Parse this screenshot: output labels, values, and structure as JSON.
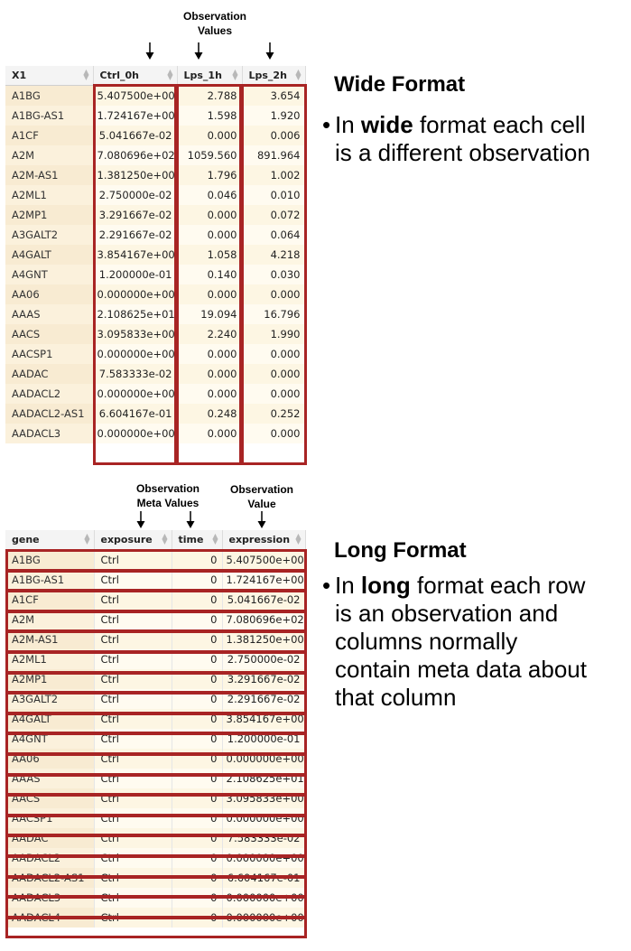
{
  "wide": {
    "annotation": [
      "Observation",
      "Values"
    ],
    "columns": [
      "X1",
      "Ctrl_0h",
      "Lps_1h",
      "Lps_2h"
    ],
    "rows": [
      [
        "A1BG",
        "5.407500e+00",
        "2.788",
        "3.654"
      ],
      [
        "A1BG-AS1",
        "1.724167e+00",
        "1.598",
        "1.920"
      ],
      [
        "A1CF",
        "5.041667e-02",
        "0.000",
        "0.006"
      ],
      [
        "A2M",
        "7.080696e+02",
        "1059.560",
        "891.964"
      ],
      [
        "A2M-AS1",
        "1.381250e+00",
        "1.796",
        "1.002"
      ],
      [
        "A2ML1",
        "2.750000e-02",
        "0.046",
        "0.010"
      ],
      [
        "A2MP1",
        "3.291667e-02",
        "0.000",
        "0.072"
      ],
      [
        "A3GALT2",
        "2.291667e-02",
        "0.000",
        "0.064"
      ],
      [
        "A4GALT",
        "3.854167e+00",
        "1.058",
        "4.218"
      ],
      [
        "A4GNT",
        "1.200000e-01",
        "0.140",
        "0.030"
      ],
      [
        "AA06",
        "0.000000e+00",
        "0.000",
        "0.000"
      ],
      [
        "AAAS",
        "2.108625e+01",
        "19.094",
        "16.796"
      ],
      [
        "AACS",
        "3.095833e+00",
        "2.240",
        "1.990"
      ],
      [
        "AACSP1",
        "0.000000e+00",
        "0.000",
        "0.000"
      ],
      [
        "AADAC",
        "7.583333e-02",
        "0.000",
        "0.000"
      ],
      [
        "AADACL2",
        "0.000000e+00",
        "0.000",
        "0.000"
      ],
      [
        "AADACL2-AS1",
        "6.604167e-01",
        "0.248",
        "0.252"
      ],
      [
        "AADACL3",
        "0.000000e+00",
        "0.000",
        "0.000"
      ]
    ],
    "heading": "Wide Format",
    "bullet": {
      "before": "In ",
      "bold": "wide",
      "after": " format each cell",
      "line2": "is a different observation"
    }
  },
  "long": {
    "annotation_meta": [
      "Observation",
      "Meta Values"
    ],
    "annotation_value": [
      "Observation",
      "Value"
    ],
    "columns": [
      "gene",
      "exposure",
      "time",
      "expression"
    ],
    "rows": [
      [
        "A1BG",
        "Ctrl",
        "0",
        "5.407500e+00"
      ],
      [
        "A1BG-AS1",
        "Ctrl",
        "0",
        "1.724167e+00"
      ],
      [
        "A1CF",
        "Ctrl",
        "0",
        "5.041667e-02"
      ],
      [
        "A2M",
        "Ctrl",
        "0",
        "7.080696e+02"
      ],
      [
        "A2M-AS1",
        "Ctrl",
        "0",
        "1.381250e+00"
      ],
      [
        "A2ML1",
        "Ctrl",
        "0",
        "2.750000e-02"
      ],
      [
        "A2MP1",
        "Ctrl",
        "0",
        "3.291667e-02"
      ],
      [
        "A3GALT2",
        "Ctrl",
        "0",
        "2.291667e-02"
      ],
      [
        "A4GALT",
        "Ctrl",
        "0",
        "3.854167e+00"
      ],
      [
        "A4GNT",
        "Ctrl",
        "0",
        "1.200000e-01"
      ],
      [
        "AA06",
        "Ctrl",
        "0",
        "0.000000e+00"
      ],
      [
        "AAAS",
        "Ctrl",
        "0",
        "2.108625e+01"
      ],
      [
        "AACS",
        "Ctrl",
        "0",
        "3.095833e+00"
      ],
      [
        "AACSP1",
        "Ctrl",
        "0",
        "0.000000e+00"
      ],
      [
        "AADAC",
        "Ctrl",
        "0",
        "7.583333e-02"
      ],
      [
        "AADACL2",
        "Ctrl",
        "0",
        "0.000000e+00"
      ],
      [
        "AADACL2-AS1",
        "Ctrl",
        "0",
        "6.604167e-01"
      ],
      [
        "AADACL3",
        "Ctrl",
        "0",
        "0.000000e+00"
      ],
      [
        "AADACL4",
        "Ctrl",
        "0",
        "0.000000e+00"
      ]
    ],
    "heading": "Long Format",
    "bullet": {
      "before": "In ",
      "bold": "long",
      "after": " format each row",
      "line2": "is an observation and",
      "line3": "columns normally",
      "line4": "contain meta data about",
      "line5": "that column"
    }
  },
  "colors": {
    "highlight_box": "#a82424",
    "row_fill": "#fffbf0",
    "header_fill": "#f4f4f4"
  }
}
